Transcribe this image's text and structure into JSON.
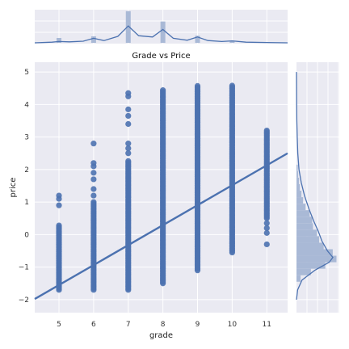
{
  "chart_data": {
    "type": "scatter",
    "title": "Grade vs Price",
    "xlabel": "grade",
    "ylabel": "price",
    "xlim": [
      4.3,
      11.6
    ],
    "ylim": [
      -2.4,
      5.3
    ],
    "xticks": [
      "5",
      "6",
      "7",
      "8",
      "9",
      "10",
      "11"
    ],
    "yticks": [
      "−2",
      "−1",
      "0",
      "1",
      "2",
      "3",
      "4",
      "5"
    ],
    "grid": true,
    "background": "#eaeaf2",
    "point_color": "#4c72b0",
    "fill_color": "#a9b9d6",
    "columns": [
      {
        "x": 5,
        "min": -1.7,
        "max": 0.3,
        "extra": [
          0.9,
          1.1,
          1.2
        ]
      },
      {
        "x": 6,
        "min": -1.7,
        "max": 1.0,
        "extra": [
          1.2,
          1.4,
          1.7,
          1.9,
          2.1,
          2.2,
          2.8
        ]
      },
      {
        "x": 7,
        "min": -1.7,
        "max": 2.3,
        "extra": [
          2.5,
          2.65,
          2.8,
          3.4,
          3.65,
          3.85,
          4.25,
          4.35
        ]
      },
      {
        "x": 8,
        "min": -1.5,
        "max": 4.45,
        "extra": []
      },
      {
        "x": 9,
        "min": -1.1,
        "max": 4.6,
        "extra": []
      },
      {
        "x": 10,
        "min": -0.55,
        "max": 4.6,
        "extra": []
      },
      {
        "x": 11,
        "min": 0.5,
        "max": 3.2,
        "extra": [
          -0.3,
          0.05,
          0.2,
          0.35
        ]
      }
    ],
    "regression": {
      "x": [
        4.3,
        11.6
      ],
      "y": [
        -1.98,
        2.5
      ]
    },
    "marginal_x": {
      "hist": [
        {
          "x": 5,
          "count": 0.15
        },
        {
          "x": 6,
          "count": 0.2
        },
        {
          "x": 7,
          "count": 0.98
        },
        {
          "x": 8,
          "count": 0.66
        },
        {
          "x": 9,
          "count": 0.22
        },
        {
          "x": 10,
          "count": 0.06
        },
        {
          "x": 11,
          "count": 0.02
        }
      ],
      "kde": [
        {
          "x": 4.3,
          "d": 0.0
        },
        {
          "x": 4.8,
          "d": 0.02
        },
        {
          "x": 5.0,
          "d": 0.04
        },
        {
          "x": 5.3,
          "d": 0.03
        },
        {
          "x": 5.7,
          "d": 0.05
        },
        {
          "x": 6.0,
          "d": 0.14
        },
        {
          "x": 6.3,
          "d": 0.07
        },
        {
          "x": 6.7,
          "d": 0.2
        },
        {
          "x": 7.0,
          "d": 0.52
        },
        {
          "x": 7.3,
          "d": 0.22
        },
        {
          "x": 7.7,
          "d": 0.18
        },
        {
          "x": 8.0,
          "d": 0.41
        },
        {
          "x": 8.3,
          "d": 0.14
        },
        {
          "x": 8.7,
          "d": 0.08
        },
        {
          "x": 9.0,
          "d": 0.18
        },
        {
          "x": 9.3,
          "d": 0.07
        },
        {
          "x": 9.7,
          "d": 0.04
        },
        {
          "x": 10.0,
          "d": 0.06
        },
        {
          "x": 10.4,
          "d": 0.02
        },
        {
          "x": 11.0,
          "d": 0.01
        },
        {
          "x": 11.6,
          "d": 0.0
        }
      ]
    },
    "marginal_y": {
      "hist": [
        {
          "y": -1.35,
          "count": 0.1
        },
        {
          "y": -1.15,
          "count": 0.35
        },
        {
          "y": -0.95,
          "count": 0.7
        },
        {
          "y": -0.75,
          "count": 0.97
        },
        {
          "y": -0.55,
          "count": 0.88
        },
        {
          "y": -0.35,
          "count": 0.66
        },
        {
          "y": -0.15,
          "count": 0.55
        },
        {
          "y": 0.05,
          "count": 0.5
        },
        {
          "y": 0.25,
          "count": 0.4
        },
        {
          "y": 0.45,
          "count": 0.38
        },
        {
          "y": 0.65,
          "count": 0.32
        },
        {
          "y": 0.85,
          "count": 0.22
        },
        {
          "y": 1.05,
          "count": 0.16
        },
        {
          "y": 1.25,
          "count": 0.12
        },
        {
          "y": 1.45,
          "count": 0.08
        },
        {
          "y": 1.65,
          "count": 0.06
        },
        {
          "y": 1.85,
          "count": 0.04
        },
        {
          "y": 2.05,
          "count": 0.03
        }
      ],
      "kde": [
        {
          "y": -2.0,
          "d": 0.0
        },
        {
          "y": -1.7,
          "d": 0.03
        },
        {
          "y": -1.4,
          "d": 0.15
        },
        {
          "y": -1.1,
          "d": 0.5
        },
        {
          "y": -0.85,
          "d": 0.9
        },
        {
          "y": -0.7,
          "d": 1.0
        },
        {
          "y": -0.5,
          "d": 0.85
        },
        {
          "y": -0.2,
          "d": 0.7
        },
        {
          "y": 0.1,
          "d": 0.6
        },
        {
          "y": 0.4,
          "d": 0.48
        },
        {
          "y": 0.8,
          "d": 0.34
        },
        {
          "y": 1.2,
          "d": 0.22
        },
        {
          "y": 1.6,
          "d": 0.13
        },
        {
          "y": 2.0,
          "d": 0.07
        },
        {
          "y": 2.5,
          "d": 0.035
        },
        {
          "y": 3.0,
          "d": 0.02
        },
        {
          "y": 3.5,
          "d": 0.01
        },
        {
          "y": 4.0,
          "d": 0.005
        },
        {
          "y": 5.0,
          "d": 0.0
        }
      ]
    }
  }
}
